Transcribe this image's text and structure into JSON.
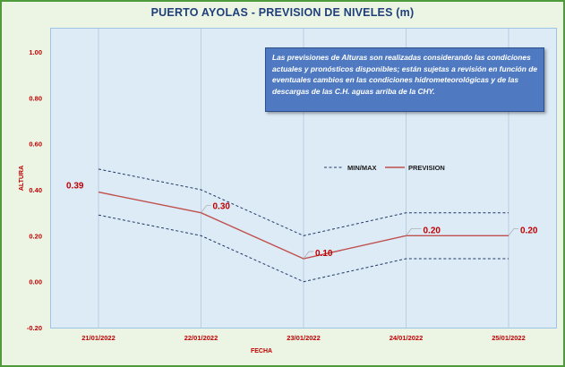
{
  "title": "PUERTO AYOLAS - PREVISION DE NIVELES (m)",
  "note": "Las previsiones de Alturas son realizadas considerando las condiciones actuales y pronósticos disponibles; están sujetas a revisión en función de eventuales cambios en las condiciones hidrometeorológicas y de las descargas de las C.H. aguas arriba de la CHY.",
  "colors": {
    "frame_border": "#4f9a3a",
    "frame_bg": "#ecf4e4",
    "plot_bg": "#ddebf7",
    "prevision_line": "#c0504d",
    "minmax_line": "#1f3864",
    "label_red": "#c00000",
    "note_bg": "#4f7ac2"
  },
  "chart_data": {
    "type": "line",
    "title": "PUERTO AYOLAS - PREVISION DE NIVELES (m)",
    "xlabel": "FECHA",
    "ylabel": "ALTURA",
    "ylim": [
      -0.2,
      1.0
    ],
    "yticks": [
      "1.00",
      "0.80",
      "0.60",
      "0.40",
      "0.20",
      "0.00",
      "-0.20"
    ],
    "ytick_values": [
      1.0,
      0.8,
      0.6,
      0.4,
      0.2,
      0.0,
      -0.2
    ],
    "categories": [
      "21/01/2022",
      "22/01/2022",
      "23/01/2022",
      "24/01/2022",
      "25/01/2022"
    ],
    "legend": [
      "MIN/MAX",
      "PREVISION"
    ],
    "legend_position": "center-right",
    "series": [
      {
        "name": "PREVISION",
        "values": [
          0.39,
          0.3,
          0.1,
          0.2,
          0.2
        ],
        "style": "solid"
      },
      {
        "name": "MAX",
        "values": [
          0.49,
          0.4,
          0.2,
          0.3,
          0.3
        ],
        "style": "dashed"
      },
      {
        "name": "MIN",
        "values": [
          0.29,
          0.2,
          0.0,
          0.1,
          0.1
        ],
        "style": "dashed"
      }
    ],
    "data_labels": [
      "0.39",
      "0.30",
      "0.10",
      "0.20",
      "0.20"
    ]
  }
}
